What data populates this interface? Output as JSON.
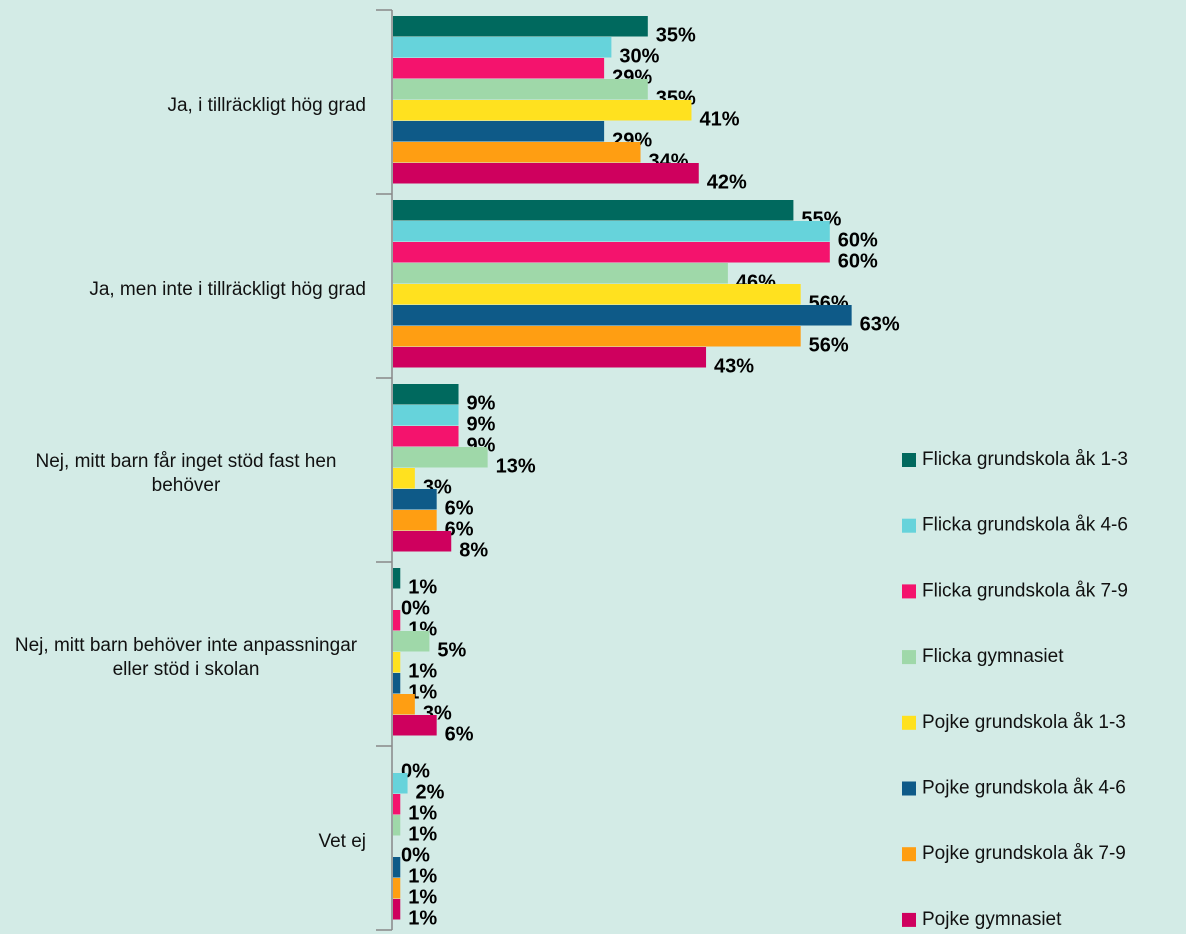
{
  "chart_data": {
    "type": "bar",
    "orientation": "horizontal",
    "categories": [
      "Ja, i tillräckligt hög grad",
      "Ja, men inte i tillräckligt hög grad",
      "Nej, mitt barn får inget stöd fast hen behöver",
      "Nej, mitt barn behöver inte anpassningar eller stöd i skolan",
      "Vet ej"
    ],
    "series": [
      {
        "name": "Flicka grundskola åk 1-3",
        "color": "#00695e",
        "values": [
          35,
          55,
          9,
          1,
          0
        ],
        "value_labels": [
          "35%",
          "55%",
          "9%",
          "1%",
          "0%"
        ]
      },
      {
        "name": "Flicka grundskola åk 4-6",
        "color": "#66d3db",
        "values": [
          30,
          60,
          9,
          0,
          2
        ],
        "value_labels": [
          "30%",
          "60%",
          "9%",
          "0%",
          "2%"
        ]
      },
      {
        "name": "Flicka grundskola åk 7-9",
        "color": "#f4136d",
        "values": [
          29,
          60,
          9,
          1,
          1
        ],
        "value_labels": [
          "29%",
          "60%",
          "9%",
          "1%",
          "1%"
        ]
      },
      {
        "name": "Flicka gymnasiet",
        "color": "#9fd8a9",
        "values": [
          35,
          46,
          13,
          5,
          1
        ],
        "value_labels": [
          "35%",
          "46%",
          "13%",
          "5%",
          "1%"
        ]
      },
      {
        "name": "Pojke grundskola åk 1-3",
        "color": "#ffe11f",
        "values": [
          41,
          56,
          3,
          1,
          0
        ],
        "value_labels": [
          "41%",
          "56%",
          "3%",
          "1%",
          "0%"
        ]
      },
      {
        "name": "Pojke grundskola åk 4-6",
        "color": "#0e5a88",
        "values": [
          29,
          63,
          6,
          1,
          1
        ],
        "value_labels": [
          "29%",
          "63%",
          "6%",
          "1%",
          "1%"
        ]
      },
      {
        "name": "Pojke grundskola åk 7-9",
        "color": "#ff9e12",
        "values": [
          34,
          56,
          6,
          3,
          1
        ],
        "value_labels": [
          "34%",
          "56%",
          "6%",
          "3%",
          "1%"
        ]
      },
      {
        "name": "Pojke gymnasiet",
        "color": "#cf005e",
        "values": [
          42,
          43,
          8,
          6,
          1
        ],
        "value_labels": [
          "42%",
          "43%",
          "8%",
          "6%",
          "1%"
        ]
      }
    ]
  }
}
